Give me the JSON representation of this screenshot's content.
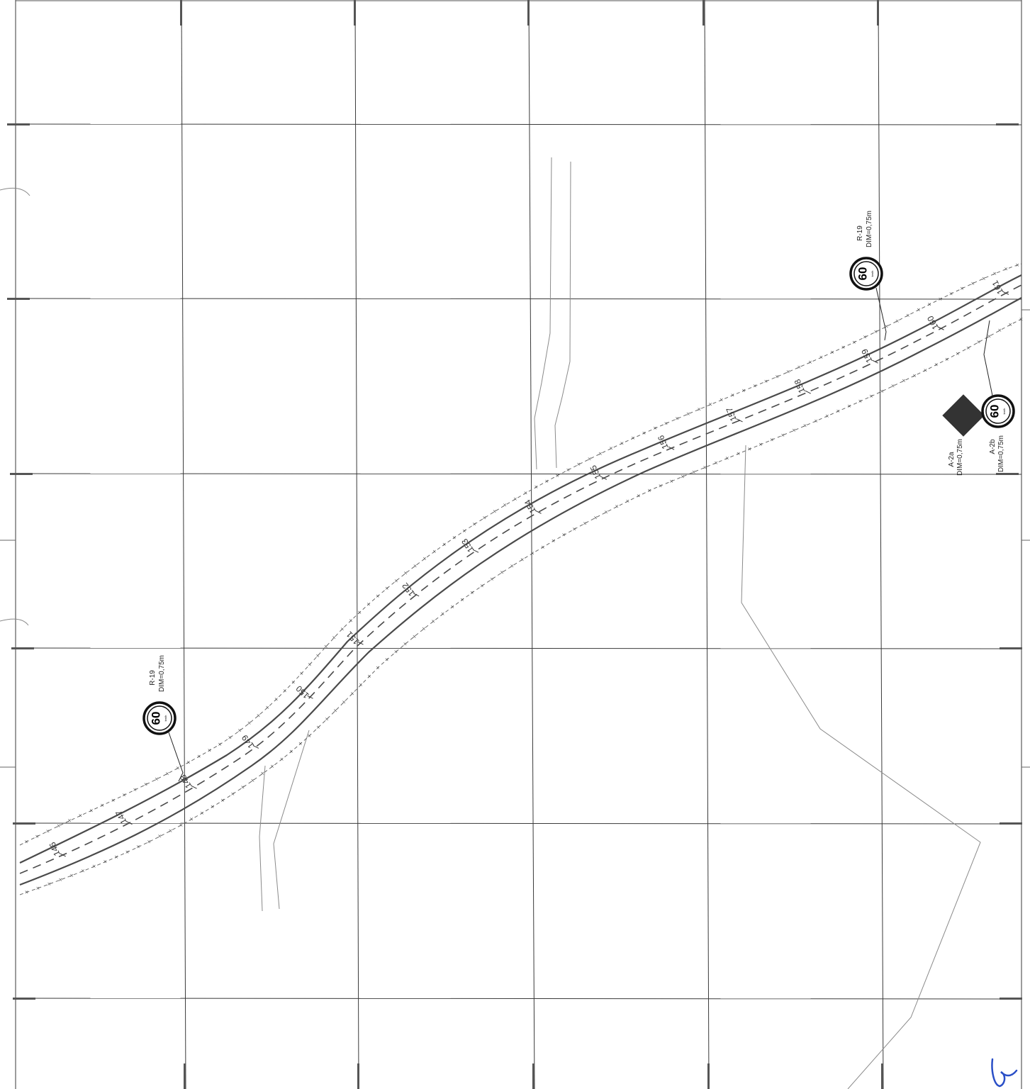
{
  "road": {
    "stations": [
      "146",
      "147",
      "148",
      "149",
      "150",
      "151",
      "152",
      "153",
      "154",
      "155",
      "156",
      "157",
      "158",
      "159",
      "160",
      "161"
    ]
  },
  "signs": {
    "speed_limit_left": {
      "value": "60",
      "unit": "km/h",
      "code": "R-19",
      "dim": "DIM=0,75m"
    },
    "speed_limit_top_right": {
      "value": "60",
      "unit": "km/h",
      "code": "R-19",
      "dim": "DIM=0,75m"
    },
    "speed_limit_right": {
      "value": "60",
      "unit": "km/h",
      "code": "A-2b",
      "dim": "DIM=0,75m"
    },
    "warning_diamond": {
      "code": "A-2a",
      "dim": "DIM=0,75m"
    }
  },
  "colors": {
    "grid": "#3a3a3a",
    "road": "#4a4a4a",
    "sign_fill": "#333333",
    "signature": "#2a4fc7"
  }
}
